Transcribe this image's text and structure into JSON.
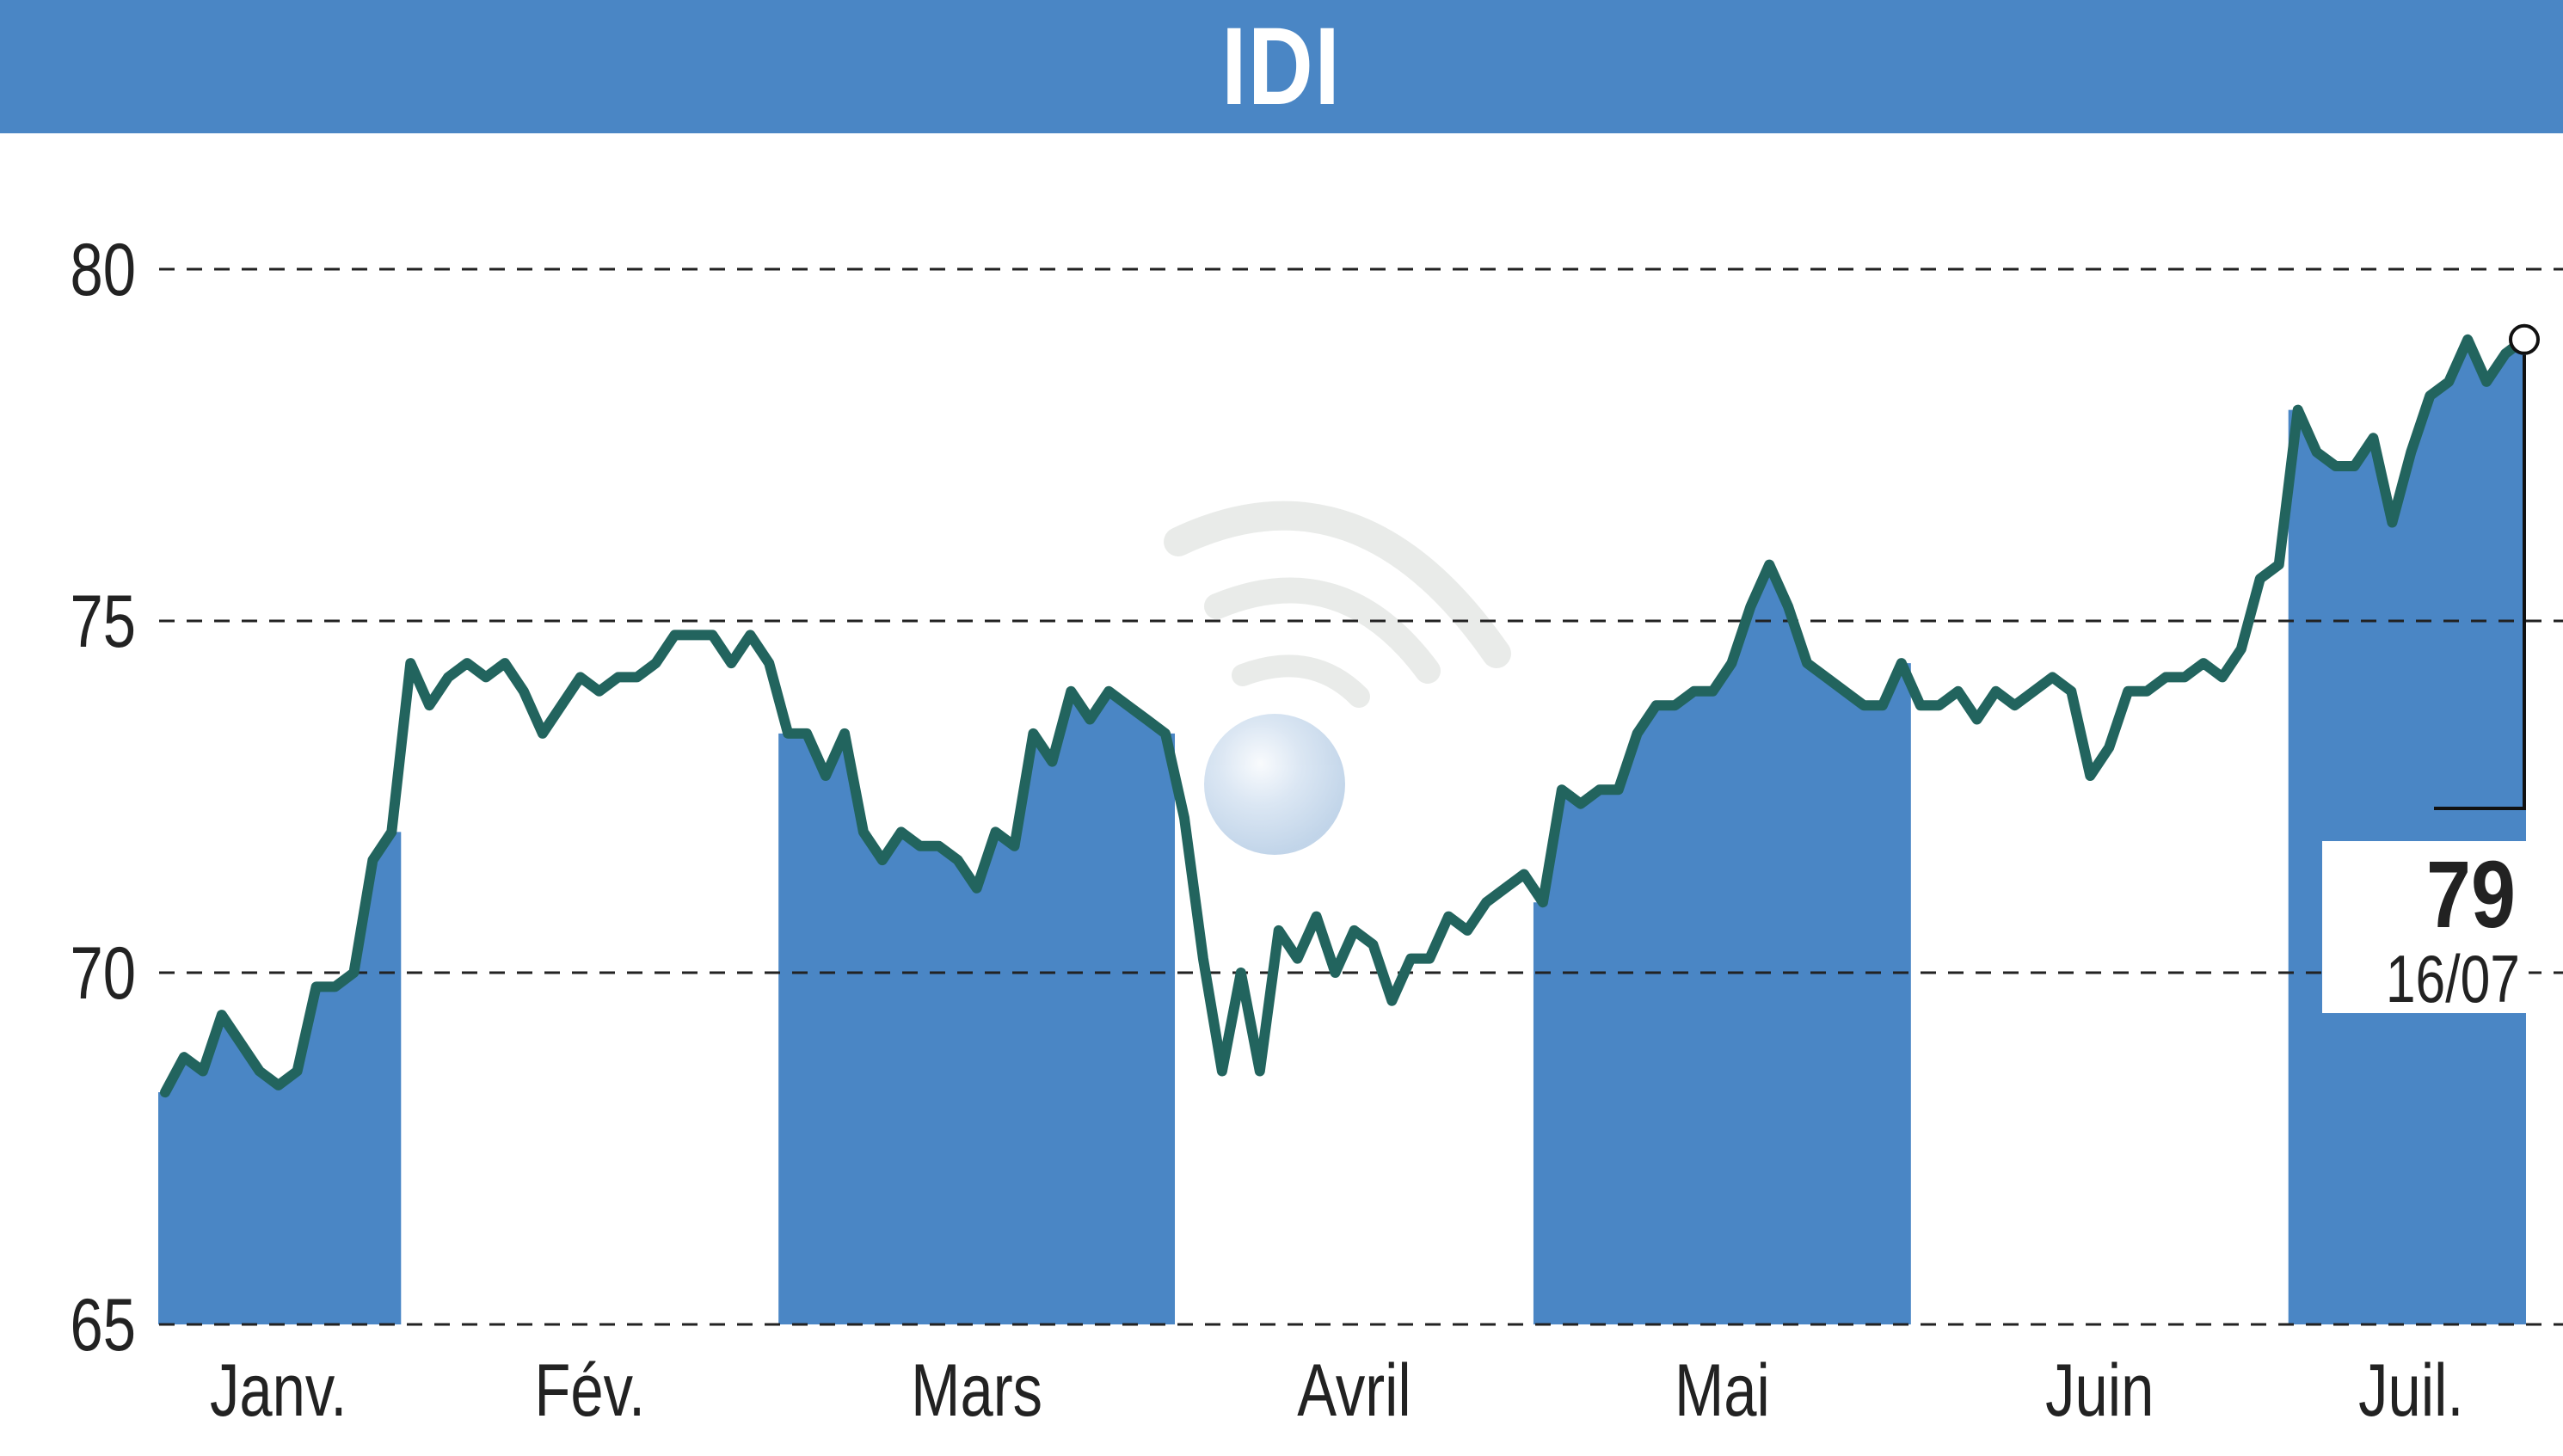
{
  "title": "IDI",
  "colors": {
    "banner": "#4a86c5",
    "fill": "#4a86c5",
    "line": "#22645e",
    "grid": "#222222"
  },
  "last_value_label": "79",
  "last_date_label": "16/07",
  "chart_data": {
    "type": "line",
    "title": "IDI",
    "xlabel": "",
    "ylabel": "",
    "ylim": [
      65,
      81
    ],
    "yticks": [
      65,
      70,
      75,
      80
    ],
    "grid": "horizontal dashed at 70, 75, 80",
    "months": [
      "Janv.",
      "Fév.",
      "Mars",
      "Avril",
      "Mai",
      "Juin",
      "Juil."
    ],
    "shaded_months": [
      "Janv.",
      "Mars",
      "Mai",
      "Juil."
    ],
    "last_point": {
      "date": "16/07",
      "value": 79
    },
    "series": [
      {
        "values": [
          68.3,
          68.8,
          68.6,
          69.4,
          69.0,
          68.6,
          68.4,
          68.6,
          69.8,
          69.8,
          70.0,
          71.6,
          72.0,
          74.4,
          73.8,
          74.2,
          74.4,
          74.2,
          74.4,
          74.0,
          73.4,
          73.8,
          74.2,
          74.0,
          74.2,
          74.2,
          74.4,
          74.8,
          74.8,
          74.8,
          74.4,
          74.8,
          74.4,
          73.4,
          73.4,
          72.8,
          73.4,
          72.0,
          71.6,
          72.0,
          71.8,
          71.8,
          71.6,
          71.2,
          72.0,
          71.8,
          73.4,
          73.0,
          74.0,
          73.6,
          74.0,
          73.8,
          73.6,
          73.4,
          72.2,
          70.2,
          68.6,
          70.0,
          68.6,
          70.6,
          70.2,
          70.8,
          70.0,
          70.6,
          70.4,
          69.6,
          70.2,
          70.2,
          70.8,
          70.6,
          71.0,
          71.2,
          71.4,
          71.0,
          72.6,
          72.4,
          72.6,
          72.6,
          73.4,
          73.8,
          73.8,
          74.0,
          74.0,
          74.4,
          75.2,
          75.8,
          75.2,
          74.4,
          74.2,
          74.0,
          73.8,
          73.8,
          74.4,
          73.8,
          73.8,
          74.0,
          73.6,
          74.0,
          73.8,
          74.0,
          74.2,
          74.0,
          72.8,
          73.2,
          74.0,
          74.0,
          74.2,
          74.2,
          74.4,
          74.2,
          74.6,
          75.6,
          75.8,
          78.0,
          77.4,
          77.2,
          77.2,
          77.6,
          76.4,
          77.4,
          78.2,
          78.4,
          79.0,
          78.4,
          78.8,
          79.0
        ]
      }
    ]
  }
}
